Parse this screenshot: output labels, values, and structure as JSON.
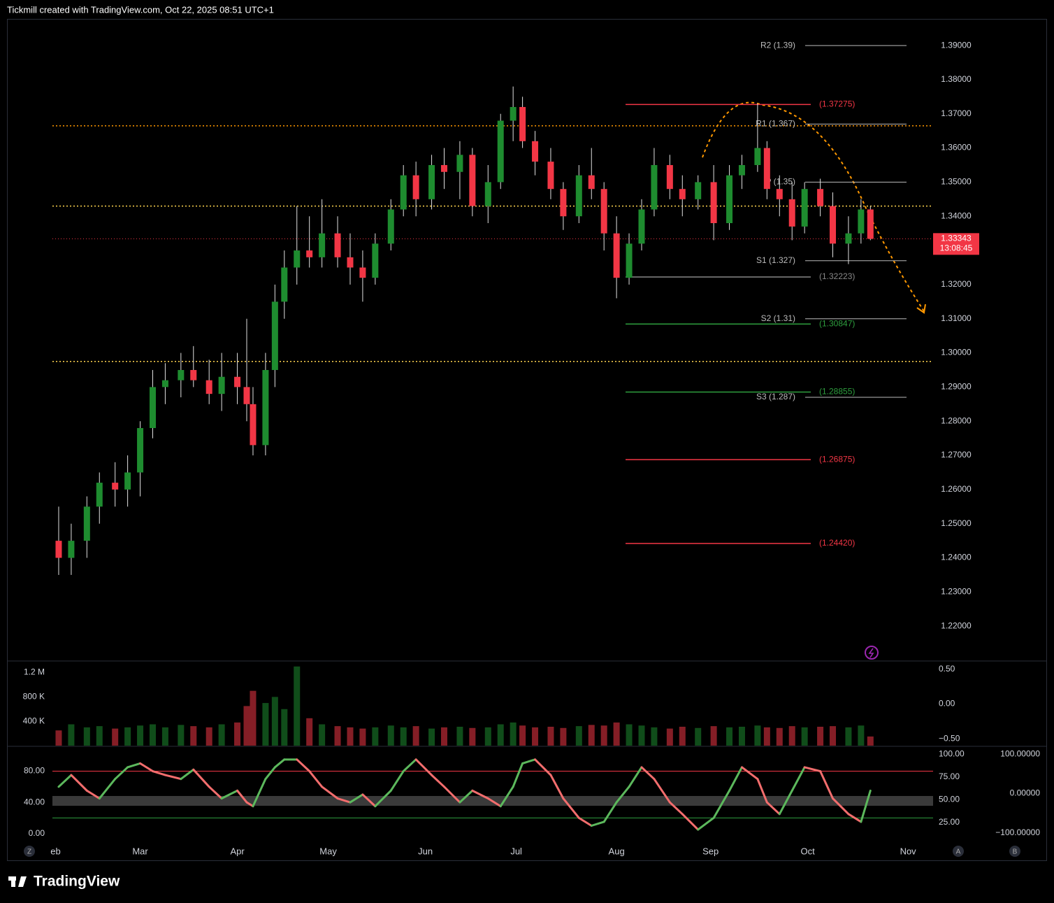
{
  "header": {
    "attribution": "Tickmill created with TradingView.com, Oct 22, 2025 08:51 UTC+1"
  },
  "footer": {
    "brand": "TradingView"
  },
  "controls": [
    "Z",
    "A",
    "B"
  ],
  "chart_data": [
    {
      "type": "candlestick",
      "x": [
        2,
        6,
        11,
        15,
        20,
        24,
        28,
        32,
        36,
        41,
        45,
        50,
        54,
        59,
        62,
        64,
        68,
        71,
        74,
        78,
        82,
        86,
        91,
        95,
        99,
        103,
        108,
        112,
        116,
        121,
        125,
        130,
        134,
        139,
        143,
        147,
        150,
        154,
        159,
        163,
        168,
        172,
        176,
        180,
        184,
        188,
        192,
        197,
        201,
        206,
        211,
        216,
        220,
        225,
        228,
        232,
        236,
        240,
        245,
        249,
        254,
        258,
        261
      ],
      "open": [
        1.245,
        1.24,
        1.245,
        1.255,
        1.262,
        1.26,
        1.265,
        1.278,
        1.29,
        1.292,
        1.295,
        1.292,
        1.288,
        1.293,
        1.29,
        1.285,
        1.273,
        1.295,
        1.315,
        1.325,
        1.33,
        1.328,
        1.335,
        1.328,
        1.325,
        1.322,
        1.332,
        1.342,
        1.352,
        1.345,
        1.355,
        1.353,
        1.358,
        1.343,
        1.35,
        1.368,
        1.372,
        1.362,
        1.356,
        1.348,
        1.34,
        1.352,
        1.348,
        1.335,
        1.322,
        1.332,
        1.342,
        1.355,
        1.348,
        1.345,
        1.35,
        1.338,
        1.352,
        1.355,
        1.36,
        1.348,
        1.345,
        1.337,
        1.348,
        1.343,
        1.332,
        1.335,
        1.342
      ],
      "high": [
        1.255,
        1.25,
        1.258,
        1.265,
        1.268,
        1.27,
        1.28,
        1.295,
        1.297,
        1.3,
        1.302,
        1.298,
        1.3,
        1.3,
        1.31,
        1.29,
        1.3,
        1.32,
        1.33,
        1.343,
        1.34,
        1.345,
        1.34,
        1.335,
        1.33,
        1.335,
        1.345,
        1.355,
        1.356,
        1.358,
        1.36,
        1.362,
        1.36,
        1.355,
        1.37,
        1.378,
        1.375,
        1.365,
        1.36,
        1.35,
        1.355,
        1.36,
        1.35,
        1.34,
        1.335,
        1.345,
        1.36,
        1.358,
        1.352,
        1.352,
        1.355,
        1.355,
        1.358,
        1.373,
        1.362,
        1.352,
        1.35,
        1.35,
        1.351,
        1.347,
        1.34,
        1.345,
        1.343
      ],
      "low": [
        1.235,
        1.235,
        1.24,
        1.25,
        1.255,
        1.255,
        1.258,
        1.275,
        1.285,
        1.287,
        1.29,
        1.285,
        1.283,
        1.285,
        1.28,
        1.27,
        1.27,
        1.29,
        1.31,
        1.32,
        1.325,
        1.325,
        1.325,
        1.32,
        1.315,
        1.32,
        1.33,
        1.34,
        1.34,
        1.342,
        1.348,
        1.345,
        1.34,
        1.338,
        1.348,
        1.362,
        1.36,
        1.352,
        1.345,
        1.336,
        1.338,
        1.345,
        1.33,
        1.316,
        1.32,
        1.33,
        1.34,
        1.345,
        1.34,
        1.342,
        1.333,
        1.336,
        1.348,
        1.353,
        1.345,
        1.34,
        1.333,
        1.335,
        1.34,
        1.328,
        1.326,
        1.332,
        1.333
      ],
      "close": [
        1.24,
        1.245,
        1.255,
        1.262,
        1.26,
        1.265,
        1.278,
        1.29,
        1.292,
        1.295,
        1.292,
        1.288,
        1.293,
        1.29,
        1.285,
        1.273,
        1.295,
        1.315,
        1.325,
        1.33,
        1.328,
        1.335,
        1.328,
        1.325,
        1.322,
        1.332,
        1.342,
        1.352,
        1.345,
        1.355,
        1.353,
        1.358,
        1.343,
        1.35,
        1.368,
        1.372,
        1.362,
        1.356,
        1.348,
        1.34,
        1.352,
        1.348,
        1.335,
        1.322,
        1.332,
        1.342,
        1.355,
        1.348,
        1.345,
        1.35,
        1.338,
        1.352,
        1.355,
        1.36,
        1.348,
        1.345,
        1.337,
        1.348,
        1.343,
        1.332,
        1.335,
        1.342,
        1.3334
      ],
      "up_color": "#1e8c2f",
      "down_color": "#f23645",
      "xlim": [
        0,
        281
      ],
      "xticks": [
        {
          "value": 1,
          "label": "eb"
        },
        {
          "value": 28,
          "label": "Mar"
        },
        {
          "value": 59,
          "label": "Apr"
        },
        {
          "value": 88,
          "label": "May"
        },
        {
          "value": 119,
          "label": "Jun"
        },
        {
          "value": 148,
          "label": "Jul"
        },
        {
          "value": 180,
          "label": "Aug"
        },
        {
          "value": 210,
          "label": "Sep"
        },
        {
          "value": 241,
          "label": "Oct"
        },
        {
          "value": 273,
          "label": "Nov"
        }
      ],
      "ylim": [
        1.2098,
        1.3978
      ],
      "yticks": [
        {
          "value": 1.22,
          "label": "1.22000"
        },
        {
          "value": 1.23,
          "label": "1.23000"
        },
        {
          "value": 1.24,
          "label": "1.24000"
        },
        {
          "value": 1.25,
          "label": "1.25000"
        },
        {
          "value": 1.26,
          "label": "1.26000"
        },
        {
          "value": 1.27,
          "label": "1.27000"
        },
        {
          "value": 1.28,
          "label": "1.28000"
        },
        {
          "value": 1.29,
          "label": "1.29000"
        },
        {
          "value": 1.3,
          "label": "1.30000"
        },
        {
          "value": 1.31,
          "label": "1.31000"
        },
        {
          "value": 1.32,
          "label": "1.32000"
        },
        {
          "value": 1.33,
          "label": "1.33000"
        },
        {
          "value": 1.34,
          "label": "1.34000"
        },
        {
          "value": 1.35,
          "label": "1.35000"
        },
        {
          "value": 1.36,
          "label": "1.36000"
        },
        {
          "value": 1.37,
          "label": "1.37000"
        },
        {
          "value": 1.38,
          "label": "1.38000"
        },
        {
          "value": 1.39,
          "label": "1.39000"
        }
      ],
      "last_price": 1.33343,
      "countdown": "13:08:45",
      "hlines": [
        {
          "value": 1.3665,
          "color": "#ff9800"
        },
        {
          "value": 1.343,
          "color": "#ffd54f"
        },
        {
          "value": 1.2975,
          "color": "#ffd54f"
        }
      ],
      "pivots": [
        {
          "value": 1.39,
          "label": "R2 (1.39)"
        },
        {
          "value": 1.367,
          "label": "R1 (1.367)"
        },
        {
          "value": 1.35,
          "label": "P (1.35)"
        },
        {
          "value": 1.327,
          "label": "S1 (1.327)"
        },
        {
          "value": 1.31,
          "label": "S2 (1.31)"
        },
        {
          "value": 1.287,
          "label": "S3 (1.287)"
        }
      ],
      "levels": [
        {
          "value": 1.37275,
          "label": "(1.37275)",
          "color": "#f23645"
        },
        {
          "value": 1.32223,
          "label": "(1.32223)",
          "color": "#888888"
        },
        {
          "value": 1.30847,
          "label": "(1.30847)",
          "color": "#2e9e3e"
        },
        {
          "value": 1.28855,
          "label": "(1.28855)",
          "color": "#2e9e3e"
        },
        {
          "value": 1.26875,
          "label": "(1.26875)",
          "color": "#f23645"
        },
        {
          "value": 1.2442,
          "label": "(1.24420)",
          "color": "#f23645"
        }
      ]
    },
    {
      "type": "bar",
      "values": [
        250000,
        350000,
        300000,
        320000,
        280000,
        300000,
        330000,
        350000,
        300000,
        340000,
        320000,
        300000,
        350000,
        380000,
        650000,
        900000,
        700000,
        800000,
        600000,
        1300000,
        450000,
        350000,
        320000,
        300000,
        280000,
        300000,
        330000,
        300000,
        320000,
        280000,
        300000,
        310000,
        290000,
        300000,
        350000,
        380000,
        330000,
        300000,
        310000,
        290000,
        320000,
        340000,
        330000,
        380000,
        350000,
        330000,
        300000,
        280000,
        310000,
        290000,
        320000,
        300000,
        310000,
        330000,
        300000,
        290000,
        320000,
        300000,
        310000,
        320000,
        300000,
        330000,
        150000
      ],
      "ylim": [
        0,
        1390000
      ],
      "yticks": [
        {
          "value": 400000,
          "label": "400 K"
        },
        {
          "value": 800000,
          "label": "800 K"
        },
        {
          "value": 1200000,
          "label": "1.2 M"
        }
      ],
      "y2lim": [
        -0.6,
        0.62
      ],
      "y2ticks": [
        {
          "value": 0.5,
          "label": "0.50"
        },
        {
          "value": 0,
          "label": "0.00"
        },
        {
          "value": -0.5,
          "label": "−0.50"
        }
      ]
    },
    {
      "type": "line",
      "values": [
        60,
        75,
        55,
        45,
        70,
        85,
        90,
        80,
        75,
        70,
        82,
        60,
        45,
        55,
        40,
        35,
        70,
        85,
        95,
        95,
        80,
        60,
        45,
        40,
        50,
        35,
        55,
        80,
        95,
        75,
        60,
        40,
        55,
        45,
        35,
        60,
        90,
        95,
        75,
        45,
        20,
        10,
        15,
        40,
        60,
        85,
        70,
        40,
        25,
        5,
        20,
        55,
        85,
        70,
        40,
        25,
        55,
        85,
        80,
        45,
        25,
        15,
        55
      ],
      "ylim": [
        -12,
        111
      ],
      "yticks": [
        {
          "value": 0,
          "label": "0.00"
        },
        {
          "value": 40,
          "label": "40.00"
        },
        {
          "value": 80,
          "label": "80.00"
        }
      ],
      "levels": [
        80,
        20
      ],
      "y2lim": [
        2.7,
        107.8
      ],
      "y2ticks": [
        {
          "value": 100,
          "label": "100.00"
        },
        {
          "value": 75,
          "label": "75.00"
        },
        {
          "value": 50,
          "label": "50.00"
        },
        {
          "value": 25,
          "label": "25.00"
        }
      ],
      "y3lim": [
        -125,
        118
      ],
      "y3ticks": [
        {
          "value": 100,
          "label": "100.00000"
        },
        {
          "value": 0,
          "label": "0.00000"
        },
        {
          "value": -100,
          "label": "−100.00000"
        }
      ]
    }
  ]
}
